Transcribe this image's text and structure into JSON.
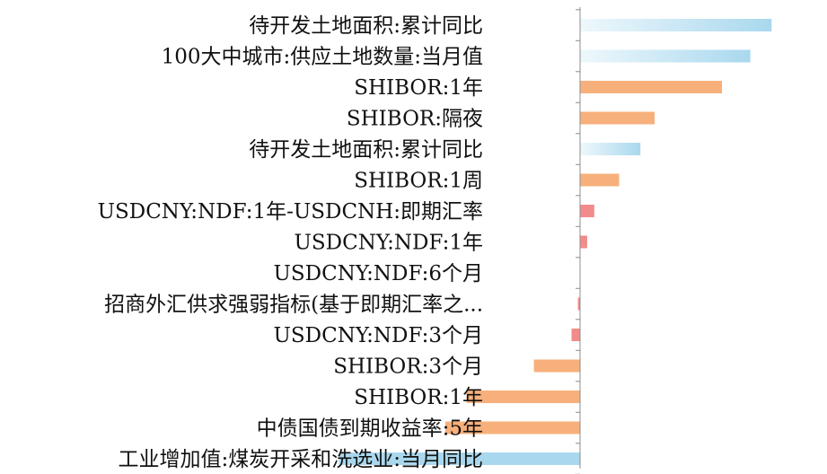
{
  "chart_data": {
    "type": "bar",
    "orientation": "horizontal",
    "title": "",
    "xlabel": "",
    "ylabel": "",
    "categories": [
      "待开发土地面积:累计同比",
      "100大中城市:供应土地数量:当月值",
      "SHIBOR:1年",
      "SHIBOR:隔夜",
      "待开发土地面积:累计同比",
      "SHIBOR:1周",
      "USDCNY:NDF:1年-USDCNH:即期汇率",
      "USDCNY:NDF:1年",
      "USDCNY:NDF:6个月",
      "招商外汇供求强弱指标(基于即期汇率之...",
      "USDCNY:NDF:3个月",
      "SHIBOR:3个月",
      "SHIBOR:1年",
      "中债国债到期收益率:5年",
      "工业增加值:煤炭开采和洗选业:当月同比"
    ],
    "values": [
      27,
      24,
      20,
      10.5,
      8.5,
      5.5,
      2,
      1,
      0,
      -0.3,
      -1.2,
      -6.5,
      -16,
      -19,
      -34
    ],
    "bar_colors": [
      "#a9d8ee",
      "#a9d8ee",
      "#f7b07c",
      "#f7b07c",
      "#a9d8ee",
      "#f7b07c",
      "#f28b8b",
      "#f28b8b",
      "#f28b8b",
      "#f28b8b",
      "#f28b8b",
      "#f7b07c",
      "#f7b07c",
      "#f7b07c",
      "#a9d8ee"
    ],
    "gradient_start_color": "#eef8fc",
    "axis_color": "#8c8c8c"
  }
}
